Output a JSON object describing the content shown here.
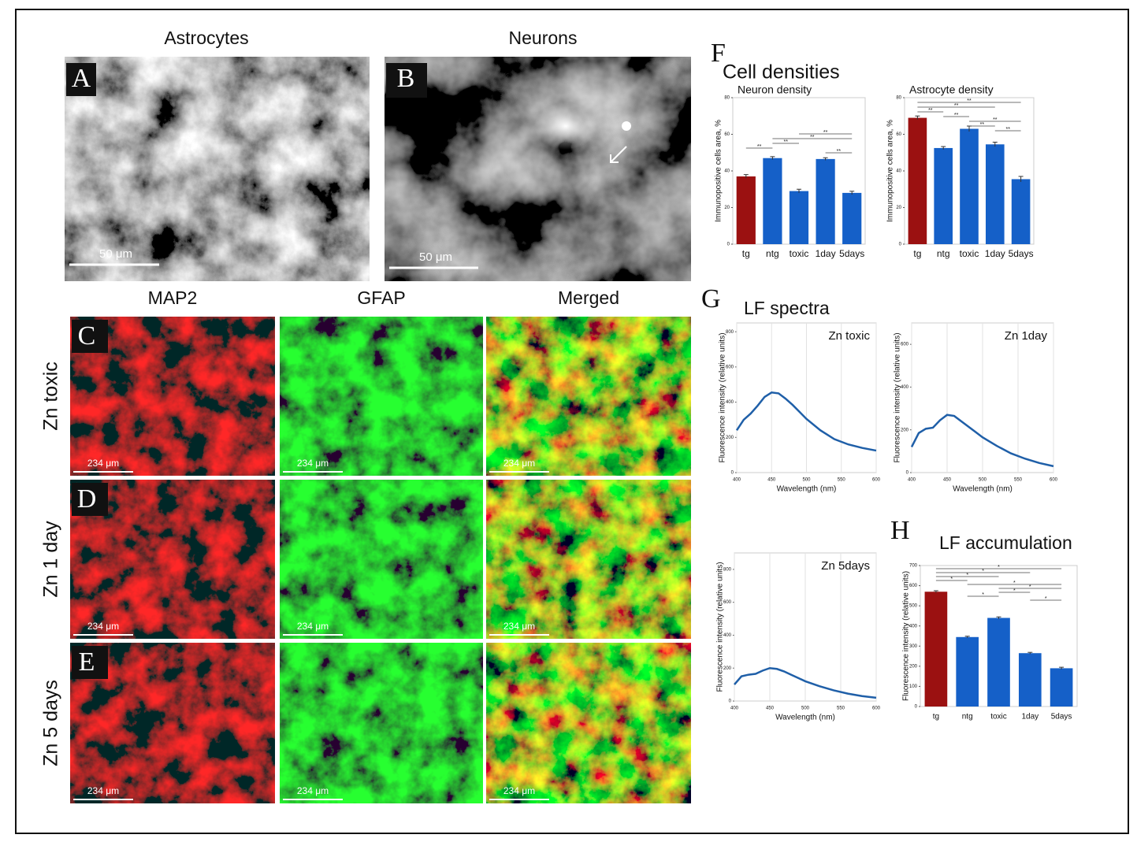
{
  "figure": {
    "panel_a": {
      "letter": "A",
      "title": "Astrocytes",
      "scale": "50 μm"
    },
    "panel_b": {
      "letter": "B",
      "title": "Neurons",
      "scale": "50 μm"
    },
    "grid": {
      "columns": [
        "MAP2",
        "GFAP",
        "Merged"
      ],
      "rows": [
        {
          "letter": "C",
          "label": "Zn toxic"
        },
        {
          "letter": "D",
          "label": "Zn 1 day"
        },
        {
          "letter": "E",
          "label": "Zn 5 days"
        }
      ],
      "scale": "234 μm"
    },
    "panel_f": {
      "letter": "F",
      "title": "Cell densities"
    },
    "panel_g": {
      "letter": "G",
      "title": "LF spectra"
    },
    "panel_h": {
      "letter": "H",
      "title": "LF accumulation"
    }
  },
  "chart_data": [
    {
      "type": "bar",
      "title": "Neuron  density",
      "y_label": "Immunopositive cells area, %",
      "categories": [
        "tg",
        "ntg",
        "toxic",
        "1day",
        "5days"
      ],
      "values": [
        37,
        47,
        29,
        46.5,
        28
      ],
      "errors": [
        1,
        0.8,
        1,
        0.7,
        0.9
      ],
      "colors": [
        "#9b1111",
        "#1560c8",
        "#1560c8",
        "#1560c8",
        "#1560c8"
      ],
      "ylim": [
        0,
        80
      ],
      "yticks": [
        0,
        20,
        40,
        60,
        80
      ],
      "significance": [
        {
          "pair": [
            "toxic",
            "5days"
          ],
          "label": "**"
        },
        {
          "pair": [
            "ntg",
            "5days"
          ],
          "label": "**"
        },
        {
          "pair": [
            "ntg",
            "toxic"
          ],
          "label": "**"
        },
        {
          "pair": [
            "tg",
            "ntg"
          ],
          "label": "**"
        },
        {
          "pair": [
            "1day",
            "5days"
          ],
          "label": "**"
        }
      ]
    },
    {
      "type": "bar",
      "title": "Astrocyte density",
      "y_label": "Immunopositive cells area, %",
      "categories": [
        "tg",
        "ntg",
        "toxic",
        "1day",
        "5days"
      ],
      "values": [
        69,
        52.5,
        63,
        54.5,
        35.5
      ],
      "errors": [
        1,
        0.8,
        1.5,
        1.2,
        1.5
      ],
      "colors": [
        "#9b1111",
        "#1560c8",
        "#1560c8",
        "#1560c8",
        "#1560c8"
      ],
      "ylim": [
        0,
        80
      ],
      "yticks": [
        0,
        20,
        40,
        60,
        80
      ],
      "significance": [
        {
          "pair": [
            "tg",
            "5days"
          ],
          "label": "**"
        },
        {
          "pair": [
            "tg",
            "1day"
          ],
          "label": "**"
        },
        {
          "pair": [
            "tg",
            "ntg"
          ],
          "label": "**"
        },
        {
          "pair": [
            "ntg",
            "toxic"
          ],
          "label": "**"
        },
        {
          "pair": [
            "toxic",
            "5days"
          ],
          "label": "**"
        },
        {
          "pair": [
            "toxic",
            "1day"
          ],
          "label": "**"
        },
        {
          "pair": [
            "1day",
            "5days"
          ],
          "label": "**"
        }
      ]
    },
    {
      "type": "line",
      "title": "Zn toxic",
      "x_label": "Wavelength (nm)",
      "y_label": "Fluorescence intensity (relative units)",
      "color": "#1f5fa8",
      "grid": "x",
      "x": [
        400,
        410,
        420,
        430,
        440,
        450,
        460,
        470,
        480,
        490,
        500,
        520,
        540,
        560,
        580,
        600
      ],
      "values": [
        240,
        300,
        335,
        380,
        430,
        455,
        450,
        420,
        385,
        345,
        305,
        240,
        190,
        160,
        140,
        125
      ],
      "xlim": [
        400,
        600
      ],
      "xticks": [
        400,
        450,
        500,
        550,
        600
      ],
      "ylim": [
        0,
        850
      ],
      "yticks": [
        0,
        200,
        400,
        600,
        800
      ]
    },
    {
      "type": "line",
      "title": "Zn 1day",
      "x_label": "Wavelength (nm)",
      "y_label": "Fluorescence intensity (relative units)",
      "color": "#1f5fa8",
      "grid": "x",
      "x": [
        400,
        410,
        420,
        430,
        440,
        450,
        460,
        470,
        480,
        490,
        500,
        520,
        540,
        560,
        580,
        600
      ],
      "values": [
        120,
        185,
        205,
        210,
        245,
        270,
        265,
        240,
        215,
        190,
        165,
        125,
        90,
        65,
        45,
        30
      ],
      "xlim": [
        400,
        600
      ],
      "xticks": [
        400,
        450,
        500,
        550,
        600
      ],
      "ylim": [
        0,
        700
      ],
      "yticks": [
        0,
        200,
        400,
        600
      ]
    },
    {
      "type": "line",
      "title": "Zn 5days",
      "x_label": "Wavelength (nm)",
      "y_label": "Fluorescence intensity (relative units)",
      "color": "#1f5fa8",
      "grid": "x",
      "x": [
        400,
        410,
        420,
        430,
        440,
        450,
        460,
        470,
        480,
        490,
        500,
        520,
        540,
        560,
        580,
        600
      ],
      "values": [
        100,
        150,
        160,
        165,
        185,
        200,
        195,
        180,
        160,
        140,
        120,
        90,
        65,
        45,
        30,
        20
      ],
      "xlim": [
        400,
        600
      ],
      "xticks": [
        400,
        450,
        500,
        550,
        600
      ],
      "ylim": [
        0,
        900
      ],
      "yticks": [
        0,
        200,
        400,
        600,
        800
      ]
    },
    {
      "type": "bar",
      "y_label": "Fluorescence intensity (relative units)",
      "categories": [
        "tg",
        "ntg",
        "toxic",
        "1day",
        "5days"
      ],
      "values": [
        570,
        345,
        440,
        265,
        190
      ],
      "errors": [
        5,
        4,
        5,
        4,
        5
      ],
      "colors": [
        "#9b1111",
        "#1560c8",
        "#1560c8",
        "#1560c8",
        "#1560c8"
      ],
      "ylim": [
        0,
        700
      ],
      "yticks": [
        0,
        100,
        200,
        300,
        400,
        500,
        600,
        700
      ],
      "significance": [
        {
          "pair": [
            "tg",
            "5days"
          ],
          "label": "*"
        },
        {
          "pair": [
            "tg",
            "1day"
          ],
          "label": "*"
        },
        {
          "pair": [
            "tg",
            "toxic"
          ],
          "label": "*"
        },
        {
          "pair": [
            "tg",
            "ntg"
          ],
          "label": "*"
        },
        {
          "pair": [
            "ntg",
            "5days"
          ],
          "label": "*"
        },
        {
          "pair": [
            "toxic",
            "5days"
          ],
          "label": "*"
        },
        {
          "pair": [
            "toxic",
            "1day"
          ],
          "label": "*"
        },
        {
          "pair": [
            "ntg",
            "toxic"
          ],
          "label": "*"
        },
        {
          "pair": [
            "1day",
            "5days"
          ],
          "label": "*"
        }
      ]
    }
  ]
}
